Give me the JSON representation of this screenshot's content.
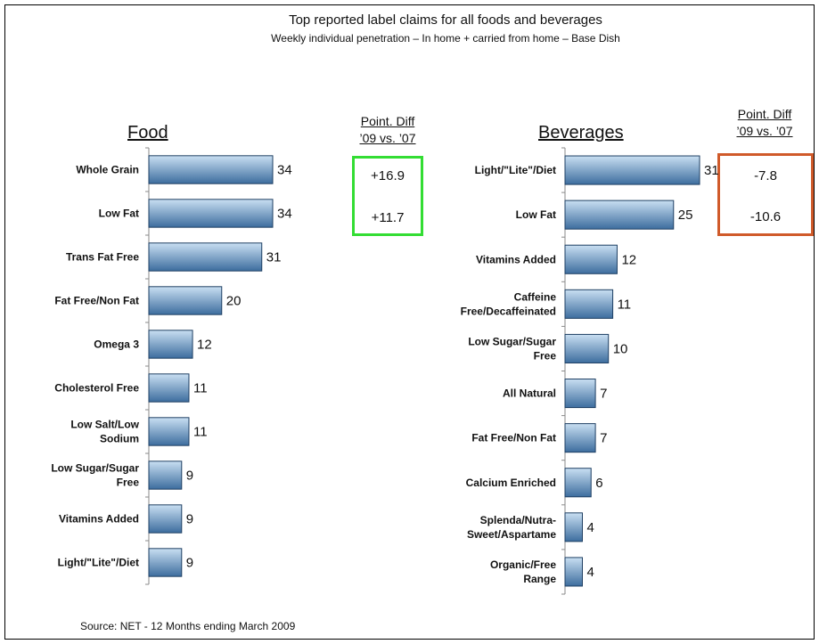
{
  "title": "Top reported label claims for all foods and beverages",
  "subtitle": "Weekly individual penetration – In home + carried from home – Base Dish",
  "source": "Source: NET - 12 Months ending March 2009",
  "food_heading": "Food",
  "beverages_heading": "Beverages",
  "point_diff_heading": [
    "Point. Diff",
    "’09 vs. ’07"
  ],
  "food_point_diff": [
    "+16.9",
    "+11.7"
  ],
  "beverages_point_diff": [
    "-7.8",
    "-10.6"
  ],
  "colors": {
    "bar_light": "#c9dff2",
    "bar_dark": "#3d6d9e",
    "bar_stroke": "#1e3f63",
    "food_box": "#33dd33",
    "bev_box": "#d05a2a"
  },
  "chart_data": [
    {
      "type": "bar",
      "orientation": "horizontal",
      "title": "Food",
      "categories": [
        "Whole Grain",
        "Low Fat",
        "Trans Fat Free",
        "Fat Free/Non Fat",
        "Omega 3",
        "Cholesterol Free",
        "Low Salt/Low Sodium",
        "Low Sugar/Sugar Free",
        "Vitamins Added",
        "Light/\"Lite\"/Diet"
      ],
      "values": [
        34,
        34,
        31,
        20,
        12,
        11,
        11,
        9,
        9,
        9
      ],
      "xlim": [
        0,
        34
      ]
    },
    {
      "type": "bar",
      "orientation": "horizontal",
      "title": "Beverages",
      "categories": [
        "Light/\"Lite\"/Diet",
        "Low Fat",
        "Vitamins Added",
        "Caffeine Free/Decaffeinated",
        "Low Sugar/Sugar Free",
        "All Natural",
        "Fat Free/Non Fat",
        "Calcium Enriched",
        "Splenda/Nutra-Sweet/Aspartame",
        "Organic/Free Range"
      ],
      "values": [
        31,
        25,
        12,
        11,
        10,
        7,
        7,
        6,
        4,
        4
      ],
      "xlim": [
        0,
        31
      ]
    }
  ]
}
